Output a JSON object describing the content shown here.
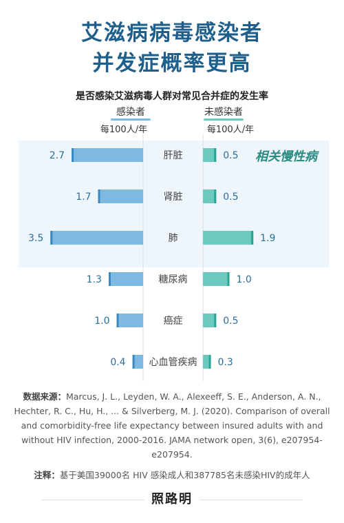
{
  "title_line1": "艾滋病病毒感染者",
  "title_line2": "并发症概率更高",
  "subtitle": "是否感染艾滋病毒人群对常见合并症的发生率",
  "left_header": "感染者",
  "right_header": "未感染者",
  "unit_left": "每100人/年",
  "unit_right": "每100人/年",
  "chronic_label": "相关慢性病",
  "colors": {
    "title": "#1e5f8c",
    "infected_bar": "#7eb9e1",
    "infected_bar_edge": "#3b87c0",
    "uninfected_bar": "#6cc9be",
    "uninfected_bar_edge": "#2aa394",
    "highlight_band": "#eef6fc",
    "value_text": "#2b6f99"
  },
  "chart_data": {
    "type": "bar",
    "categories": [
      "肝脏",
      "肾脏",
      "肺",
      "糖尿病",
      "癌症",
      "心血管疾病"
    ],
    "series": [
      {
        "name": "感染者",
        "values": [
          2.7,
          1.7,
          3.5,
          1.3,
          1.0,
          0.4
        ]
      },
      {
        "name": "未感染者",
        "values": [
          0.5,
          0.5,
          1.9,
          1.0,
          0.5,
          0.3
        ]
      }
    ],
    "value_labels": {
      "infected": [
        "2.7",
        "1.7",
        "3.5",
        "1.3",
        "1.0",
        "0.4"
      ],
      "uninfected": [
        "0.5",
        "0.5",
        "1.9",
        "1.0",
        "0.5",
        "0.3"
      ]
    },
    "highlighted_categories": [
      "肝脏",
      "肾脏",
      "肺"
    ],
    "orientation": "horizontal-butterfly"
  },
  "source": {
    "label": "数据来源：",
    "text": "Marcus, J. L., Leyden, W. A., Alexeeff, S. E., Anderson, A. N., Hechter, R. C., Hu, H., ... & Silverberg, M. J. (2020). Comparison of overall and comorbidity-free life expectancy between insured adults with and without HIV infection, 2000-2016. JAMA network open, 3(6), e207954-e207954."
  },
  "note": {
    "label": "注释：",
    "text": "基于美国39000名 HIV 感染成人和387785名未感染HIV的成年人"
  },
  "logo_text": "照路明"
}
